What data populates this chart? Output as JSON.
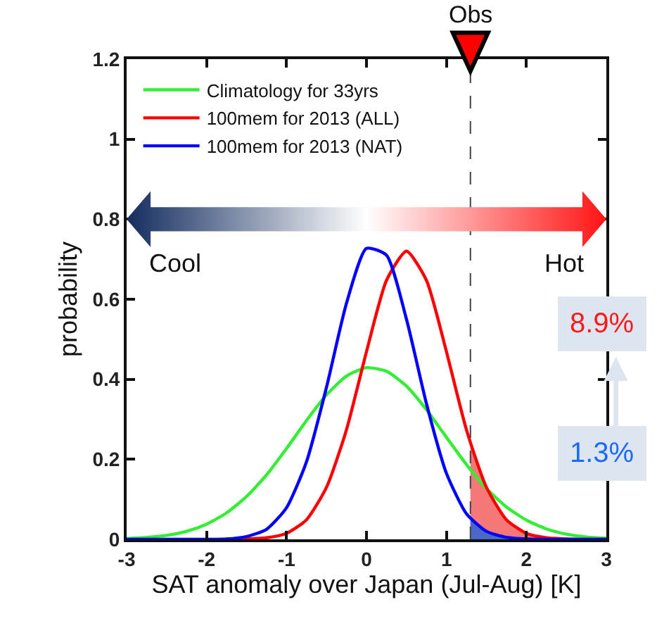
{
  "chart_data": {
    "type": "line",
    "xlabel": "SAT anomaly over Japan (Jul-Aug) [K]",
    "ylabel": "probability",
    "x": [
      -3,
      -2.75,
      -2.5,
      -2.25,
      -2,
      -1.75,
      -1.5,
      -1.25,
      -1,
      -0.75,
      -0.5,
      -0.25,
      0,
      0.25,
      0.5,
      0.75,
      1,
      1.25,
      1.5,
      1.75,
      2,
      2.25,
      2.5,
      2.75,
      3
    ],
    "series": [
      {
        "name": "Climatology for 33yrs",
        "color": "#33ee33",
        "values": [
          0.002,
          0.005,
          0.01,
          0.02,
          0.038,
          0.066,
          0.107,
          0.161,
          0.227,
          0.297,
          0.361,
          0.408,
          0.429,
          0.42,
          0.383,
          0.324,
          0.255,
          0.187,
          0.127,
          0.081,
          0.048,
          0.026,
          0.013,
          0.006,
          0.003
        ]
      },
      {
        "name": "100mem for 2013 (ALL)",
        "color": "#ff0000",
        "values": [
          null,
          null,
          null,
          null,
          null,
          0,
          0.001,
          0.004,
          0.015,
          0.049,
          0.13,
          0.274,
          0.469,
          0.647,
          0.72,
          0.647,
          0.469,
          0.274,
          0.13,
          0.049,
          0.015,
          0.004,
          0.001,
          0,
          0
        ]
      },
      {
        "name": "100mem for 2013 (NAT)",
        "color": "#0000ff",
        "values": [
          0,
          0,
          0,
          0,
          0,
          0.001,
          0.007,
          0.025,
          0.079,
          0.194,
          0.38,
          0.59,
          0.727,
          0.71,
          0.55,
          0.339,
          0.165,
          0.064,
          0.02,
          0.005,
          0.001,
          0,
          0,
          0,
          0
        ]
      },
      {
        "type": "area",
        "color": "#f47878",
        "x": [
          1.3,
          1.5,
          1.75,
          2,
          2.25,
          2.5,
          2.75,
          3
        ],
        "values": [
          0.25,
          0.13,
          0.049,
          0.015,
          0.004,
          0.001,
          0,
          0
        ]
      },
      {
        "type": "area",
        "color": "#4a68c8",
        "x": [
          1.3,
          1.5,
          1.75,
          2,
          2.25,
          2.5
        ],
        "values": [
          0.055,
          0.02,
          0.005,
          0.001,
          0,
          0
        ]
      }
    ],
    "xlim": [
      -3,
      3
    ],
    "xticks": [
      -3,
      -2,
      -1,
      0,
      1,
      2,
      3
    ],
    "ylim": [
      0,
      1.2
    ],
    "yticks": [
      0,
      0.2,
      0.4,
      0.6,
      0.8,
      1,
      1.2
    ],
    "ref_lines": [
      {
        "axis": "x",
        "value": 1.3,
        "label": "Obs",
        "color": "#444444",
        "line_style": "dashed"
      }
    ],
    "annotations": [
      "Cool",
      "Hot",
      "8.9%",
      "1.3%"
    ],
    "legend": "top left",
    "marker": "none",
    "line_style": "solid"
  }
}
